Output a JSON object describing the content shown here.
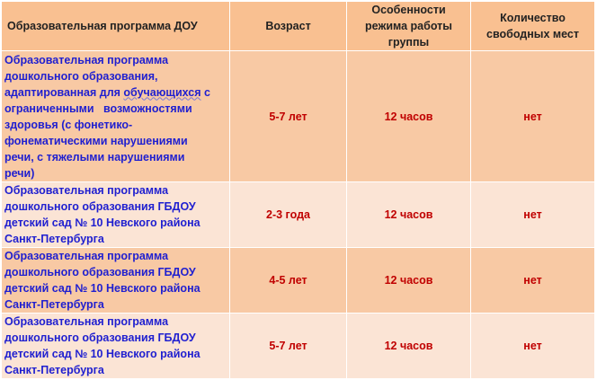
{
  "headers": {
    "program": "Образовательная программа ДОУ",
    "age": "Возраст",
    "schedule": "Особенности режима работы группы",
    "vacancies": "Количество свободных мест"
  },
  "rows": [
    {
      "program_lines": [
        "Образовательная программа",
        "дошкольного образования,",
        "адаптированная для ",
        "обучающихся",
        " с",
        "ограниченными   возможностями",
        "здоровья (с фонетико-",
        "фонематическими нарушениями",
        "речи, с тяжелыми нарушениями",
        "речи)"
      ],
      "age": "5-7 лет",
      "schedule": "12 часов",
      "vacancies": "нет"
    },
    {
      "program_lines": [
        "Образовательная программа",
        "дошкольного образования ГБДОУ",
        "детский сад № 10 Невского района",
        "Санкт-Петербурга"
      ],
      "age": "2-3 года",
      "schedule": "12 часов",
      "vacancies": "нет"
    },
    {
      "program_lines": [
        "Образовательная программа",
        "дошкольного образования ГБДОУ",
        "детский сад № 10 Невского района",
        "Санкт-Петербурга"
      ],
      "age": "4-5 лет",
      "schedule": "12 часов",
      "vacancies": "нет"
    },
    {
      "program_lines": [
        "Образовательная программа",
        "дошкольного образования ГБДОУ",
        "детский сад № 10 Невского района",
        "Санкт-Петербурга"
      ],
      "age": "5-7 лет",
      "schedule": "12 часов",
      "vacancies": "нет"
    }
  ]
}
